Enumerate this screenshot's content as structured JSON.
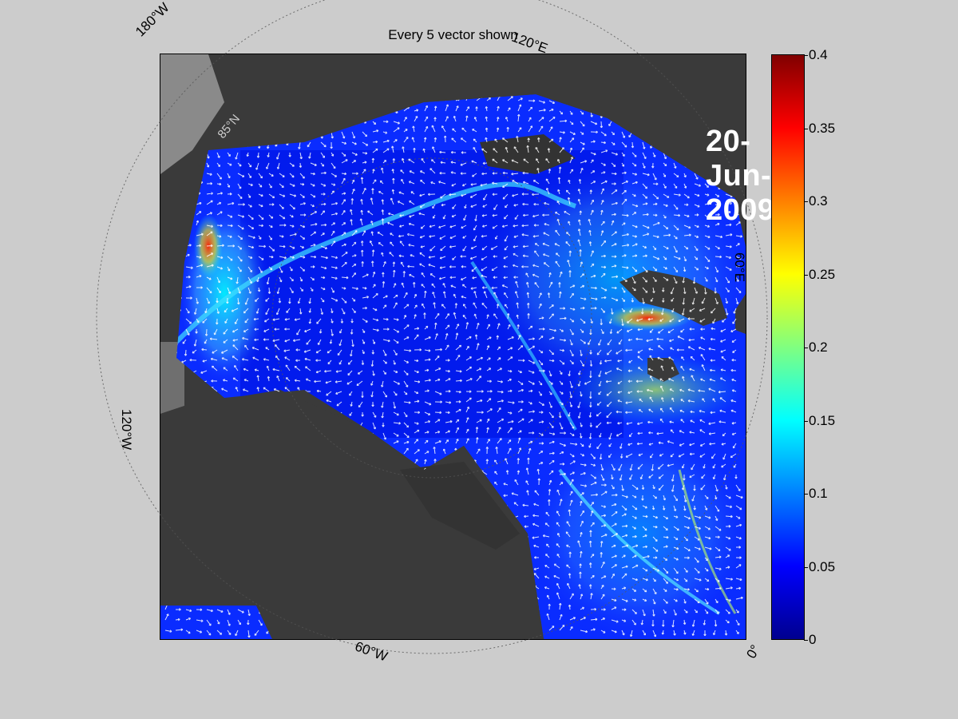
{
  "map": {
    "title": "Every 5 vector shown",
    "date": "20-Jun-2009",
    "lat_label": "85°N",
    "longitude_labels": {
      "w180": "180°W",
      "e120": "120°E",
      "e60": "60°E",
      "w120": "120°W",
      "w60": "60°W",
      "zero": "0°"
    }
  },
  "colorbar": {
    "min": 0,
    "max": 0.4,
    "ticks": [
      "0",
      "0.05",
      "0.1",
      "0.15",
      "0.2",
      "0.25",
      "0.3",
      "0.35",
      "0.4"
    ],
    "colormap": "jet"
  },
  "colors": {
    "ocean_low": "#0000ff",
    "land": "#3a3a3a",
    "land_light": "#8a8a8a",
    "vector": "#ffffff",
    "background": "#cccccc"
  }
}
